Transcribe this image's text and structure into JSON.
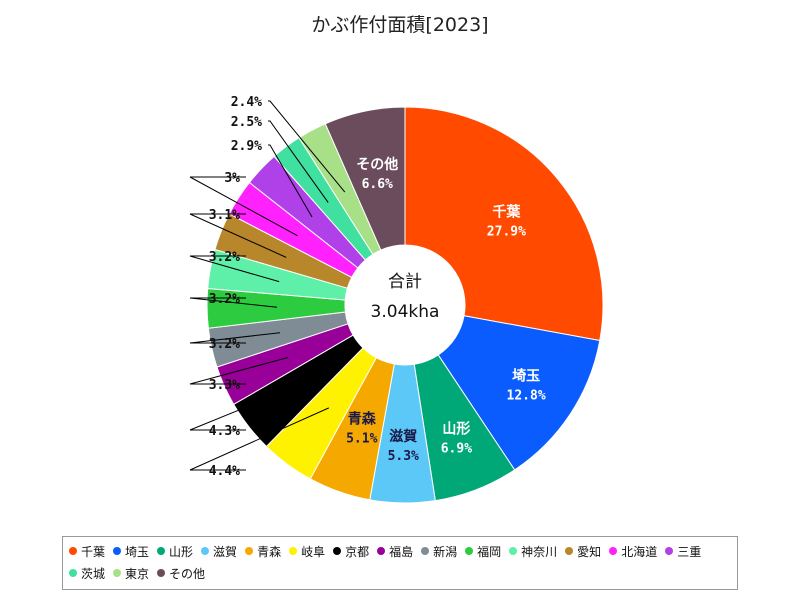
{
  "chart_data": {
    "type": "pie",
    "donut": true,
    "title": "かぶ作付面積[2023]",
    "center_label": {
      "line1": "合計",
      "line2": "3.04kha"
    },
    "slices": [
      {
        "label": "千葉",
        "value": 27.9,
        "display": "27.9%",
        "color": "#FF4A00"
      },
      {
        "label": "埼玉",
        "value": 12.8,
        "display": "12.8%",
        "color": "#0A5CFF"
      },
      {
        "label": "山形",
        "value": 6.9,
        "display": "6.9%",
        "color": "#00A878"
      },
      {
        "label": "滋賀",
        "value": 5.3,
        "display": "5.3%",
        "color": "#5BC8F8"
      },
      {
        "label": "青森",
        "value": 5.1,
        "display": "5.1%",
        "color": "#F5A800"
      },
      {
        "label": "岐阜",
        "value": 4.4,
        "display": "4.4%",
        "color": "#FFF200"
      },
      {
        "label": "京都",
        "value": 4.3,
        "display": "4.3%",
        "color": "#000000"
      },
      {
        "label": "福島",
        "value": 3.3,
        "display": "3.3%",
        "color": "#990099"
      },
      {
        "label": "新潟",
        "value": 3.2,
        "display": "3.2%",
        "color": "#7F8C95"
      },
      {
        "label": "福岡",
        "value": 3.2,
        "display": "3.2%",
        "color": "#2DCC40"
      },
      {
        "label": "神奈川",
        "value": 3.2,
        "display": "3.2%",
        "color": "#5EF0A8"
      },
      {
        "label": "愛知",
        "value": 3.1,
        "display": "3.1%",
        "color": "#B8862B"
      },
      {
        "label": "北海道",
        "value": 3.0,
        "display": "3%",
        "color": "#FF22FF"
      },
      {
        "label": "三重",
        "value": 2.9,
        "display": "2.9%",
        "color": "#B040E8"
      },
      {
        "label": "茨城",
        "value": 2.5,
        "display": "2.5%",
        "color": "#40E0A0"
      },
      {
        "label": "東京",
        "value": 2.4,
        "display": "2.4%",
        "color": "#A8E088"
      },
      {
        "label": "その他",
        "value": 6.6,
        "display": "6.6%",
        "color": "#6B4C5C"
      }
    ],
    "legend_position": "bottom"
  }
}
